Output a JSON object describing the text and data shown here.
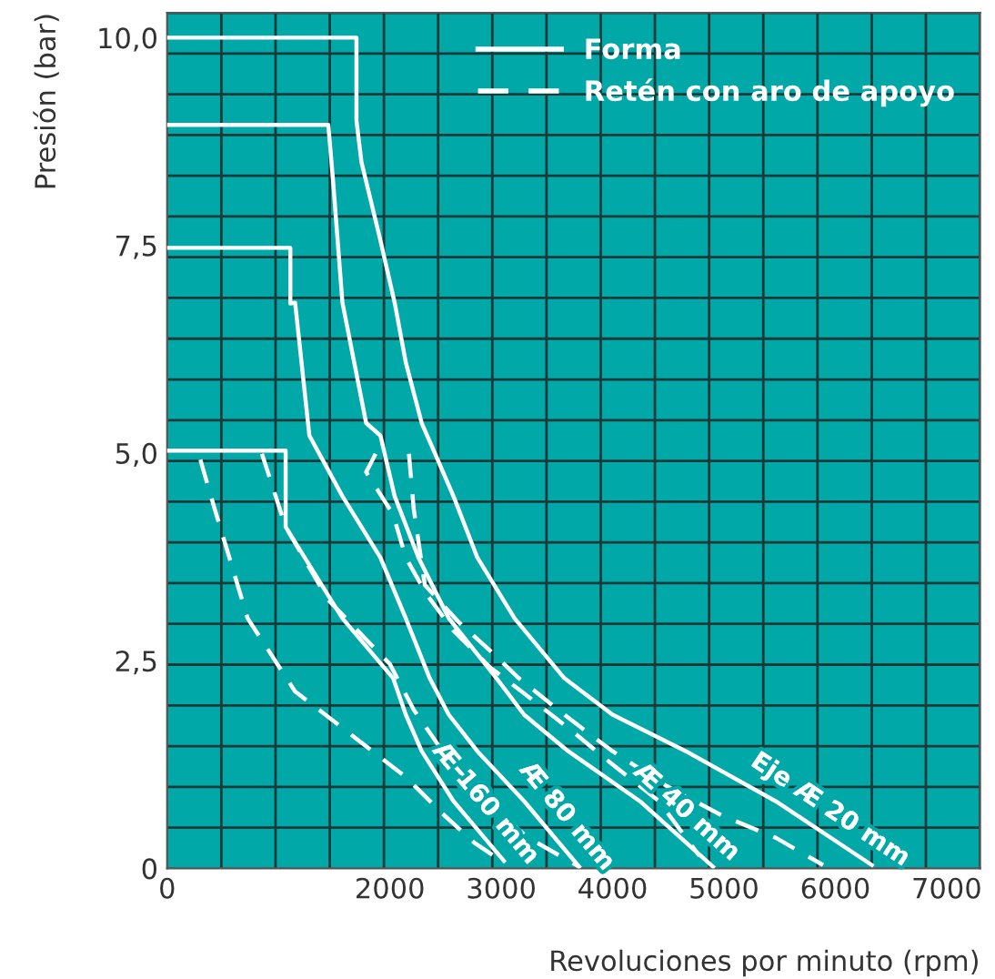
{
  "chart_data": {
    "type": "line",
    "xlabel": "Revoluciones por minuto (rpm)",
    "ylabel": "Presión (bar)",
    "xlim": [
      0,
      7300
    ],
    "ylim": [
      0,
      10.3
    ],
    "xticks": [
      0,
      2000,
      3000,
      4000,
      5000,
      6000,
      7000
    ],
    "yticks": [
      {
        "value": 0,
        "label": "0"
      },
      {
        "value": 2.5,
        "label": "2,5"
      },
      {
        "value": 5,
        "label": "5,0"
      },
      {
        "value": 7.5,
        "label": "7,5"
      },
      {
        "value": 10,
        "label": "10,0"
      }
    ],
    "grid": true,
    "legend": "top right",
    "marker": "none",
    "series": [
      {
        "name": "Forma",
        "color": "#ffffff",
        "line_style": "solid",
        "x": [
          0,
          1700,
          1700,
          1745,
          1915,
          2043,
          2143,
          2286,
          2429,
          2571,
          2786,
          3120,
          3566,
          4000,
          4659,
          5463,
          6328
        ],
        "values": [
          10.0,
          10.0,
          9.0,
          8.5,
          7.56,
          6.81,
          6.09,
          5.36,
          4.92,
          4.48,
          3.74,
          3.01,
          2.29,
          1.85,
          1.41,
          0.81,
          0.04
        ]
      },
      {
        "color": "#ffffff",
        "line_style": "solid",
        "x": [
          0,
          1447,
          1447,
          1489,
          1574,
          1787,
          1915,
          2043,
          2257,
          2529,
          2957,
          3205,
          3602,
          4244,
          4902
        ],
        "values": [
          8.95,
          8.95,
          8.95,
          8.29,
          6.81,
          5.36,
          5.21,
          4.48,
          3.74,
          3.01,
          2.29,
          1.85,
          1.41,
          0.81,
          0.02
        ]
      },
      {
        "color": "#ffffff",
        "line_style": "solid",
        "x": [
          0,
          1106,
          1106,
          1149,
          1277,
          1574,
          1915,
          2143,
          2357,
          2529,
          2786,
          3205,
          3699
        ],
        "values": [
          7.47,
          7.47,
          6.8,
          6.81,
          5.21,
          4.48,
          3.74,
          3.01,
          2.29,
          1.85,
          1.41,
          0.81,
          0.02
        ]
      },
      {
        "color": "#ffffff",
        "line_style": "solid",
        "x": [
          0,
          1064,
          1064,
          1574,
          2029,
          2143,
          2286,
          2571,
          3024
        ],
        "values": [
          5.03,
          5.03,
          4.11,
          3.01,
          2.29,
          1.85,
          1.41,
          0.81,
          0.09
        ]
      },
      {
        "name": "Retén con aro de apoyo",
        "color": "#ffffff",
        "line_style": "dashed",
        "x": [
          2171,
          2214,
          2314,
          2614,
          2900,
          3157,
          3566,
          4000,
          4488,
          4976,
          5463,
          5890
        ],
        "values": [
          4.99,
          4.33,
          3.41,
          2.97,
          2.62,
          2.29,
          1.85,
          1.41,
          0.99,
          0.64,
          0.37,
          0.04
        ]
      },
      {
        "color": "#ffffff",
        "line_style": "dashed",
        "x": [
          1872,
          1787,
          2029,
          2143,
          2329,
          2571,
          2900,
          3241,
          3602,
          4000,
          4415,
          4780
        ],
        "values": [
          4.99,
          4.77,
          4.26,
          3.74,
          3.3,
          2.86,
          2.42,
          2.07,
          1.69,
          1.25,
          0.81,
          0.15
        ]
      },
      {
        "color": "#ffffff",
        "line_style": "dashed",
        "x": [
          851,
          1064,
          1447,
          2000,
          2214,
          2500,
          2857,
          3241,
          3699
        ],
        "values": [
          4.99,
          4.11,
          3.23,
          2.46,
          1.91,
          1.36,
          0.81,
          0.37,
          0.02
        ]
      },
      {
        "color": "#ffffff",
        "line_style": "dashed",
        "x": [
          298,
          426,
          723,
          1149,
          1574,
          2143,
          2471,
          2757,
          3000
        ],
        "values": [
          4.92,
          4.33,
          3.01,
          2.13,
          1.69,
          1.1,
          0.66,
          0.31,
          0.09
        ]
      }
    ],
    "annotations": [
      "Eje Æ 20 mm",
      "Æ 40 mm",
      "Æ 80 mm",
      "Æ 160 mm"
    ]
  }
}
